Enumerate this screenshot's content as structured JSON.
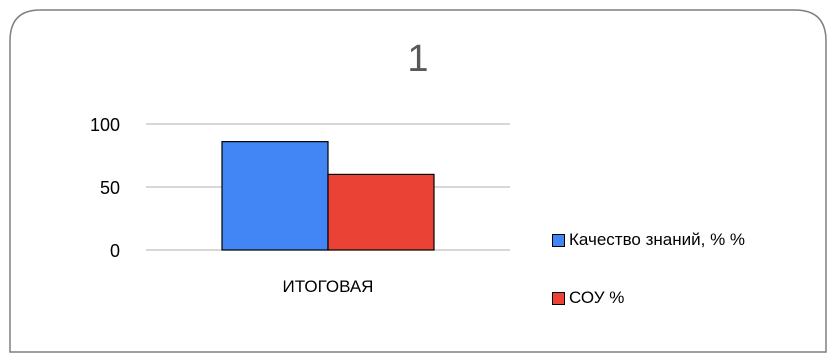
{
  "chart_data": {
    "type": "bar",
    "title": "1",
    "categories": [
      "ИТОГОВАЯ"
    ],
    "series": [
      {
        "name": "Качество знаний, % %",
        "values": [
          86
        ],
        "color": "#4286f5"
      },
      {
        "name": "СОУ %",
        "values": [
          60
        ],
        "color": "#ea4336"
      }
    ],
    "ylim": [
      0,
      100
    ],
    "yticks": [
      "0",
      "50",
      "100"
    ],
    "grid": true,
    "legend": "right"
  }
}
